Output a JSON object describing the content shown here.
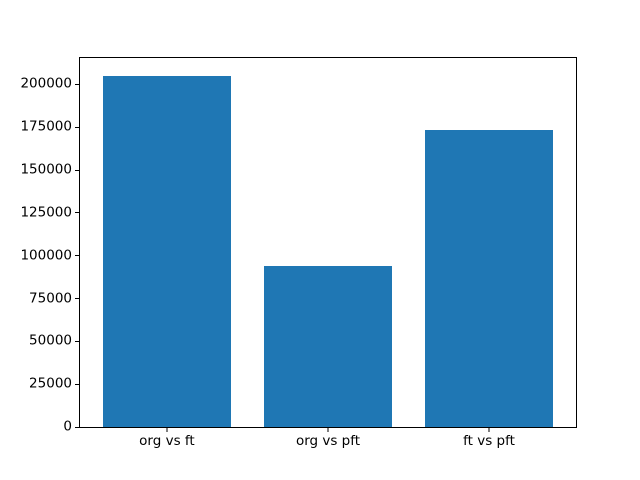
{
  "figure": {
    "background": "#ffffff",
    "axis_color": "#000000",
    "text_color": "#000000"
  },
  "chart_data": {
    "type": "bar",
    "title": "",
    "xlabel": "",
    "ylabel": "",
    "categories": [
      "org vs ft",
      "org vs pft",
      "ft vs pft"
    ],
    "values": [
      205000,
      94000,
      173500
    ],
    "bar_color": "#1f77b4",
    "ylim": [
      0,
      215400
    ],
    "yticks": [
      0,
      25000,
      50000,
      75000,
      100000,
      125000,
      150000,
      175000,
      200000
    ],
    "ytick_labels": [
      "0",
      "25000",
      "50000",
      "75000",
      "100000",
      "125000",
      "150000",
      "175000",
      "200000"
    ],
    "grid": false,
    "legend": false
  }
}
